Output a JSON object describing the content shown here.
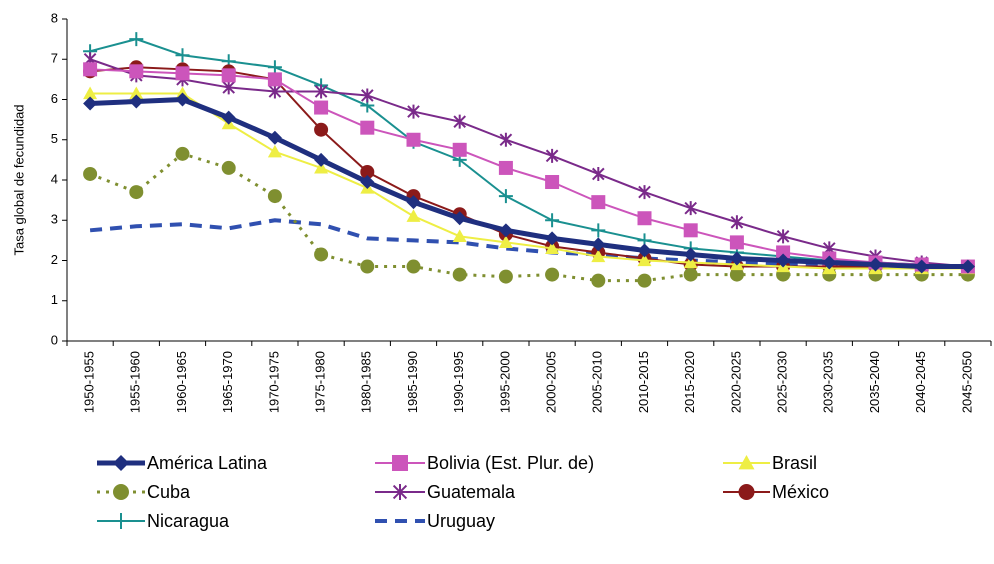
{
  "chart_data": {
    "type": "line",
    "y_label": "Tasa global de fecundidad",
    "categories": [
      "1950-1955",
      "1955-1960",
      "1960-1965",
      "1965-1970",
      "1970-1975",
      "1975-1980",
      "1980-1985",
      "1985-1990",
      "1990-1995",
      "1995-2000",
      "2000-2005",
      "2005-2010",
      "2010-2015",
      "2015-2020",
      "2020-2025",
      "2025-2030",
      "2030-2035",
      "2035-2040",
      "2040-2045",
      "2045-2050"
    ],
    "ylim": [
      0,
      8
    ],
    "yticks": [
      0,
      1,
      2,
      3,
      4,
      5,
      6,
      7,
      8
    ],
    "grid": false,
    "series": [
      {
        "name": "América Latina",
        "color": "#1f2f7f",
        "width": 5,
        "marker": "diamond",
        "dash": "solid",
        "values": [
          5.9,
          5.95,
          6.0,
          5.55,
          5.05,
          4.5,
          3.95,
          3.45,
          3.05,
          2.75,
          2.55,
          2.4,
          2.25,
          2.15,
          2.05,
          2.0,
          1.95,
          1.9,
          1.85,
          1.85
        ]
      },
      {
        "name": "Bolivia (Est. Plur. de)",
        "color": "#cc55bb",
        "width": 2,
        "marker": "square",
        "dash": "solid",
        "values": [
          6.75,
          6.7,
          6.65,
          6.6,
          6.5,
          5.8,
          5.3,
          5.0,
          4.75,
          4.3,
          3.95,
          3.45,
          3.05,
          2.75,
          2.45,
          2.2,
          2.05,
          1.95,
          1.9,
          1.85
        ]
      },
      {
        "name": "Brasil",
        "color": "#eeee44",
        "width": 2,
        "marker": "triangle",
        "dash": "solid",
        "values": [
          6.15,
          6.15,
          6.15,
          5.4,
          4.7,
          4.3,
          3.8,
          3.1,
          2.6,
          2.45,
          2.3,
          2.1,
          2.0,
          1.95,
          1.9,
          1.85,
          1.8,
          1.8,
          1.8,
          1.8
        ]
      },
      {
        "name": "Cuba",
        "color": "#7f8f30",
        "width": 3,
        "marker": "circle",
        "dash": "dot",
        "values": [
          4.15,
          3.7,
          4.65,
          4.3,
          3.6,
          2.15,
          1.85,
          1.85,
          1.65,
          1.6,
          1.65,
          1.5,
          1.5,
          1.65,
          1.65,
          1.65,
          1.65,
          1.65,
          1.65,
          1.65
        ]
      },
      {
        "name": "Guatemala",
        "color": "#7a2a8a",
        "width": 2,
        "marker": "asterisk",
        "dash": "solid",
        "values": [
          7.0,
          6.6,
          6.5,
          6.3,
          6.2,
          6.2,
          6.1,
          5.7,
          5.45,
          5.0,
          4.6,
          4.15,
          3.7,
          3.3,
          2.95,
          2.6,
          2.3,
          2.1,
          1.95,
          1.85
        ]
      },
      {
        "name": "México",
        "color": "#8b1a1a",
        "width": 2,
        "marker": "circle",
        "dash": "solid",
        "values": [
          6.7,
          6.8,
          6.75,
          6.7,
          6.5,
          5.25,
          4.2,
          3.6,
          3.15,
          2.65,
          2.35,
          2.2,
          2.05,
          1.9,
          1.85,
          1.85,
          1.85,
          1.85,
          1.85,
          1.85
        ]
      },
      {
        "name": "Nicaragua",
        "color": "#1a9090",
        "width": 2,
        "marker": "plus",
        "dash": "solid",
        "values": [
          7.2,
          7.5,
          7.1,
          6.95,
          6.8,
          6.35,
          5.85,
          4.95,
          4.5,
          3.6,
          3.0,
          2.75,
          2.5,
          2.3,
          2.2,
          2.1,
          2.0,
          1.95,
          1.9,
          1.85
        ]
      },
      {
        "name": "Uruguay",
        "color": "#3050b0",
        "width": 4,
        "marker": "none",
        "dash": "dash",
        "values": [
          2.75,
          2.85,
          2.9,
          2.8,
          3.0,
          2.9,
          2.55,
          2.5,
          2.45,
          2.3,
          2.2,
          2.15,
          2.05,
          2.0,
          1.95,
          1.9,
          1.9,
          1.85,
          1.85,
          1.85
        ]
      }
    ]
  }
}
